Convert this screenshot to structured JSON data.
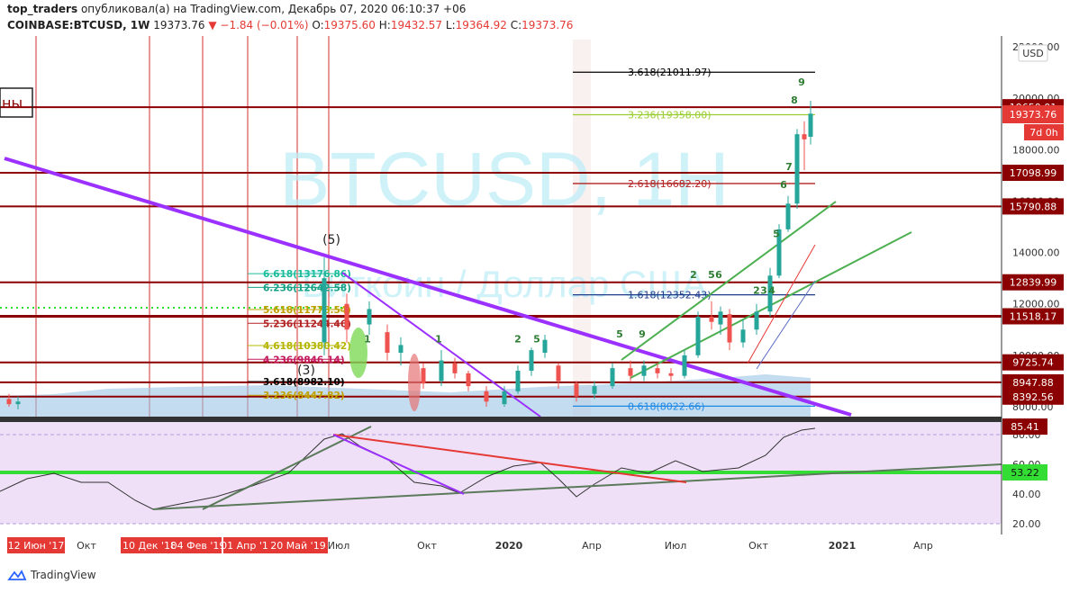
{
  "header": {
    "author": "top_traders",
    "published_text": "опубликовал(а) на TradingView.com, Декабрь 07, 2020 06:10:37 +06",
    "symbol": "COINBASE:BTCUSD, 1W",
    "last": "19373.76",
    "change": "−1.84 (−0.01%)",
    "o_label": "O:",
    "o": "19375.60",
    "h_label": "H:",
    "h": "19432.57",
    "l_label": "L:",
    "l": "19364.92",
    "c_label": "C:",
    "c": "19373.76"
  },
  "watermark": {
    "title": "BTCUSD, 1H",
    "subtitle": "Биткоин / Доллар США"
  },
  "currency": "USD",
  "price_axis": [
    {
      "label": "22000.00",
      "value": 22000
    },
    {
      "label": "20000.00",
      "value": 20000
    },
    {
      "label": "18000.00",
      "value": 18000
    },
    {
      "label": "16000.00",
      "value": 16000
    },
    {
      "label": "14000.00",
      "value": 14000
    },
    {
      "label": "12000.00",
      "value": 12000
    },
    {
      "label": "10000.00",
      "value": 10000
    },
    {
      "label": "8000.00",
      "value": 8000
    }
  ],
  "levels": [
    {
      "label": "19650.01",
      "value": 19650.01,
      "color": "#8b0000"
    },
    {
      "label": "17098.99",
      "value": 17098.99,
      "color": "#8b0000"
    },
    {
      "label": "15790.88",
      "value": 15790.88,
      "color": "#8b0000"
    },
    {
      "label": "12839.99",
      "value": 12839.99,
      "color": "#8b0000"
    },
    {
      "label": "11518.17",
      "value": 11518.17,
      "color": "#8b0000"
    },
    {
      "label": "9725.74",
      "value": 9725.74,
      "color": "#8b0000"
    },
    {
      "label": "8947.88",
      "value": 8947.88,
      "color": "#8b0000"
    },
    {
      "label": "8392.56",
      "value": 8392.56,
      "color": "#8b0000"
    }
  ],
  "current_price": {
    "label": "19373.76",
    "countdown": "7d 0h",
    "color": "#e53935"
  },
  "fib_right": [
    {
      "label": "3.618(21011.97)",
      "value": 21011.97,
      "color": "#000000"
    },
    {
      "label": "3.236(19358.00)",
      "value": 19358.0,
      "color": "#9acd32"
    },
    {
      "label": "2.618(16682.20)",
      "value": 16682.2,
      "color": "#b22222"
    },
    {
      "label": "1.618(12352.43)",
      "value": 12352.43,
      "color": "#1e3a8a"
    },
    {
      "label": "0.618(8022.66)",
      "value": 8022.66,
      "color": "#1e88e5"
    }
  ],
  "fib_left": [
    {
      "label": "6.618(13176.86)",
      "value": 13176.86,
      "color": "#1abc9c"
    },
    {
      "label": "6.236(12642.58)",
      "value": 12642.58,
      "color": "#16a085"
    },
    {
      "label": "5.618(11778.54)",
      "value": 11778.54,
      "color": "#c0a000"
    },
    {
      "label": "5.236(11244.46)",
      "value": 11244.46,
      "color": "#b22222"
    },
    {
      "label": "4.618(10380.42)",
      "value": 10380.42,
      "color": "#b5b500"
    },
    {
      "label": "4.236(9846.14)",
      "value": 9846.14,
      "color": "#c2185b"
    },
    {
      "label": "3.618(8982.10)",
      "value": 8982.1,
      "color": "#000000"
    },
    {
      "label": "3.236(8447.82)",
      "value": 8447.82,
      "color": "#c0a000"
    }
  ],
  "wave_labels": [
    "(5)",
    "(3)"
  ],
  "rsi": {
    "value_label": "85.41",
    "level_label": "53.22",
    "axis": [
      {
        "label": "80.00",
        "value": 80
      },
      {
        "label": "60.00",
        "value": 60
      },
      {
        "label": "40.00",
        "value": 40
      },
      {
        "label": "20.00",
        "value": 20
      }
    ]
  },
  "time_axis": [
    {
      "label": "Окт",
      "type": "plain"
    },
    {
      "label": "Июл",
      "type": "plain"
    },
    {
      "label": "Окт",
      "type": "plain"
    },
    {
      "label": "2020",
      "type": "bold"
    },
    {
      "label": "Апр",
      "type": "plain"
    },
    {
      "label": "Июл",
      "type": "plain"
    },
    {
      "label": "Окт",
      "type": "plain"
    },
    {
      "label": "2021",
      "type": "bold"
    },
    {
      "label": "Апр",
      "type": "plain"
    }
  ],
  "time_badges": [
    "12 Июн '17",
    "10 Дек '18",
    "04 Фев '19",
    "01 Апр '19",
    "20 Май '19"
  ],
  "footer": {
    "brand": "TradingView"
  },
  "colors": {
    "up": "#26a69a",
    "down": "#ef5350",
    "trend": "#9b30ff",
    "level": "#8b0000",
    "rsi_bg": "#efe0f8",
    "rsi_mid": "#33dd33"
  }
}
